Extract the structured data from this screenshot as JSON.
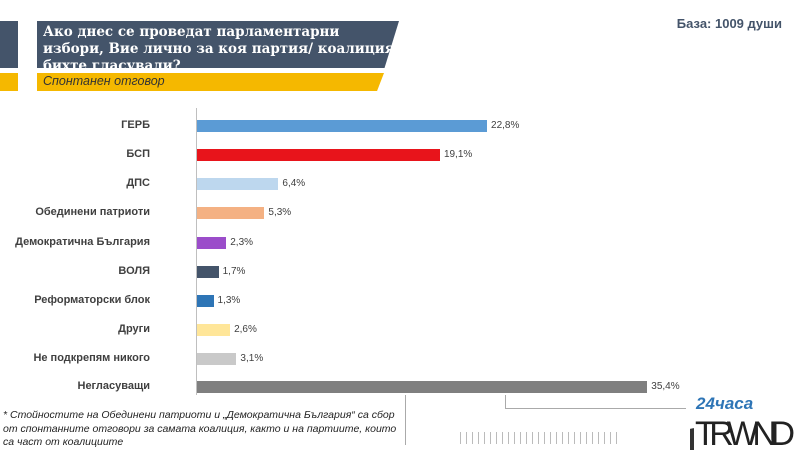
{
  "header": {
    "question": "Ако днес се проведат парламентарни избори, Вие лично за коя партия/ коалиция бихте гласували?",
    "subtitle": "Спонтанен отговор",
    "base": "База: 1009 души"
  },
  "chart_data": {
    "type": "bar",
    "orientation": "horizontal",
    "categories": [
      "ГЕРБ",
      "БСП",
      "ДПС",
      "Обединени патриоти",
      "Демократична България",
      "ВОЛЯ",
      "Реформаторски блок",
      "Други",
      "Не подкрепям никого",
      "Негласуващи"
    ],
    "values": [
      22.8,
      19.1,
      6.4,
      5.3,
      2.3,
      1.7,
      1.3,
      2.6,
      3.1,
      35.4
    ],
    "data_labels": [
      "22,8%",
      "19,1%",
      "6,4%",
      "5,3%",
      "2,3%",
      "1,7%",
      "1,3%",
      "2,6%",
      "3,1%",
      "35,4%"
    ],
    "colors": [
      "#5b9bd5",
      "#e8141b",
      "#bdd7ee",
      "#f4b183",
      "#9b4dca",
      "#44546a",
      "#2e75b6",
      "#ffe699",
      "#c9c9c9",
      "#7f7f7f"
    ],
    "xlim": [
      0,
      35.4
    ],
    "grid": false
  },
  "footnote": "* Стойностите на Обединени патриоти и „Демократична България“ са сбор от спонтанните отговори за самата коалиция, както и на партиите, които са част от коалициите",
  "logo": {
    "top": "24часа",
    "bottom": "TREND"
  }
}
